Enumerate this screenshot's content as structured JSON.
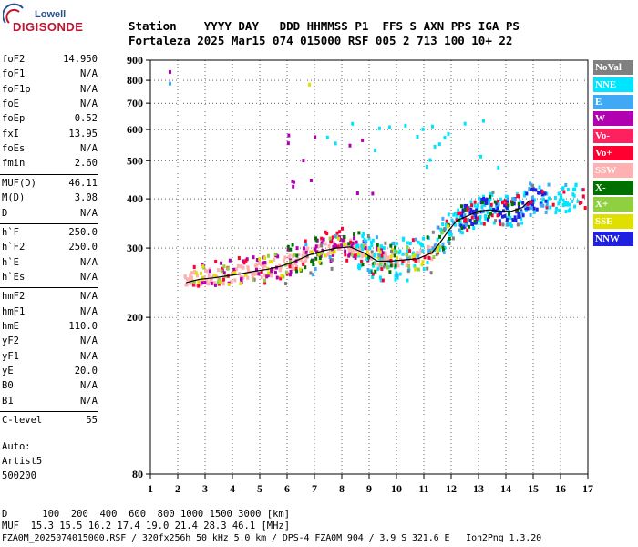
{
  "logo": {
    "top": "Lowell",
    "bottom": "DIGISONDE"
  },
  "header": {
    "line1": "Station    YYYY DAY   DDD HHMMSS P1  FFS S AXN PPS IGA PS",
    "line2": "Fortaleza 2025 Mar15 074 015000 RSF 005 2 713 100 10+ 22"
  },
  "params": [
    {
      "name": "foF2",
      "value": "14.950"
    },
    {
      "name": "foF1",
      "value": "N/A"
    },
    {
      "name": "foF1p",
      "value": "N/A"
    },
    {
      "name": "foE",
      "value": "N/A"
    },
    {
      "name": "foEp",
      "value": "0.52"
    },
    {
      "name": "fxI",
      "value": "13.95"
    },
    {
      "name": "foEs",
      "value": "N/A"
    },
    {
      "name": "fmin",
      "value": "2.60"
    },
    {
      "name": "MUF(D)",
      "value": "46.11"
    },
    {
      "name": "M(D)",
      "value": "3.08"
    },
    {
      "name": "D",
      "value": "N/A"
    },
    {
      "name": "h`F",
      "value": "250.0"
    },
    {
      "name": "h`F2",
      "value": "250.0"
    },
    {
      "name": "h`E",
      "value": "N/A"
    },
    {
      "name": "h`Es",
      "value": "N/A"
    },
    {
      "name": "hmF2",
      "value": "N/A"
    },
    {
      "name": "hmF1",
      "value": "N/A"
    },
    {
      "name": "hmE",
      "value": "110.0"
    },
    {
      "name": "yF2",
      "value": "N/A"
    },
    {
      "name": "yF1",
      "value": "N/A"
    },
    {
      "name": "yE",
      "value": "20.0"
    },
    {
      "name": "B0",
      "value": "N/A"
    },
    {
      "name": "B1",
      "value": "N/A"
    },
    {
      "name": "C-level",
      "value": "55"
    }
  ],
  "auto": {
    "line1": "Auto:",
    "line2": "Artist5",
    "line3": "500200"
  },
  "legend": [
    {
      "label": "NoVal",
      "color": "#808080"
    },
    {
      "label": "NNE",
      "color": "#00e5ff"
    },
    {
      "label": "E",
      "color": "#3fa9f5"
    },
    {
      "label": "W",
      "color": "#b000b0"
    },
    {
      "label": "Vo-",
      "color": "#ff2060"
    },
    {
      "label": "Vo+",
      "color": "#ff0030"
    },
    {
      "label": "SSW",
      "color": "#ffb0b0"
    },
    {
      "label": "X-",
      "color": "#007000"
    },
    {
      "label": "X+",
      "color": "#90d040"
    },
    {
      "label": "SSE",
      "color": "#e0e000"
    },
    {
      "label": "NNW",
      "color": "#2020e0"
    }
  ],
  "footer": {
    "line1": "D      100  200  400  600  800 1000 1500 3000 [km]",
    "line2": "MUF  15.3 15.5 16.2 17.4 19.0 21.4 28.3 46.1 [MHz]",
    "line3": "FZA0M_2025074015000.RSF / 320fx256h 50 kHz 5.0 km / DPS-4 FZA0M 904 / 3.9 S 321.6 E   Ion2Png 1.3.20"
  },
  "chart_data": {
    "type": "scatter",
    "title": "",
    "xlabel": "",
    "ylabel": "",
    "xlim": [
      1,
      17
    ],
    "ylim": [
      80,
      900
    ],
    "y_scale": "log",
    "x_ticks": [
      1,
      2,
      3,
      4,
      5,
      6,
      7,
      8,
      9,
      10,
      11,
      12,
      13,
      14,
      15,
      16,
      17
    ],
    "y_ticks": [
      80,
      200,
      300,
      400,
      500,
      600,
      700,
      800,
      900
    ],
    "trace": {
      "name": "",
      "x": [
        2.3,
        2.8,
        3.3,
        3.8,
        4.3,
        4.8,
        5.3,
        5.8,
        6.3,
        6.8,
        7.3,
        7.8,
        8.3,
        8.8,
        9.3,
        9.8,
        10.3,
        10.8,
        11.3,
        11.6,
        11.9,
        12.2,
        12.6,
        13.0,
        13.4,
        13.8,
        14.2,
        14.6,
        14.9
      ],
      "y": [
        245,
        250,
        252,
        255,
        258,
        262,
        265,
        270,
        278,
        288,
        295,
        300,
        302,
        292,
        278,
        278,
        280,
        282,
        292,
        310,
        332,
        352,
        362,
        372,
        375,
        372,
        372,
        380,
        398
      ]
    },
    "clusters": [
      {
        "name": "SSW",
        "color": "#ffb0b0",
        "x0": 2.2,
        "x1": 11.5,
        "y0": 255,
        "y1": 300,
        "n": 260
      },
      {
        "name": "W",
        "color": "#b000b0",
        "x0": 2.8,
        "x1": 9.5,
        "y0": 260,
        "y1": 340,
        "n": 90
      },
      {
        "name": "NNE",
        "color": "#00e5ff",
        "x0": 8.5,
        "x1": 16.8,
        "y0": 290,
        "y1": 420,
        "n": 220
      },
      {
        "name": "NNW",
        "color": "#2020e0",
        "x0": 12.3,
        "x1": 15.5,
        "y0": 300,
        "y1": 390,
        "n": 90
      },
      {
        "name": "Vo+",
        "color": "#ff0030",
        "x0": 2.5,
        "x1": 16.9,
        "y0": 260,
        "y1": 380,
        "n": 90
      },
      {
        "name": "X-",
        "color": "#007000",
        "x0": 6.0,
        "x1": 14.5,
        "y0": 270,
        "y1": 380,
        "n": 60
      },
      {
        "name": "X+",
        "color": "#90d040",
        "x0": 2.5,
        "x1": 12.0,
        "y0": 255,
        "y1": 330,
        "n": 40
      },
      {
        "name": "SSE",
        "color": "#e0e000",
        "x0": 2.5,
        "x1": 12.0,
        "y0": 260,
        "y1": 330,
        "n": 50
      },
      {
        "name": "E",
        "color": "#3fa9f5",
        "x0": 6.5,
        "x1": 16.8,
        "y0": 280,
        "y1": 420,
        "n": 50
      },
      {
        "name": "NoVal",
        "color": "#808080",
        "x0": 5.0,
        "x1": 15.0,
        "y0": 260,
        "y1": 400,
        "n": 25
      },
      {
        "name": "NNE-high",
        "color": "#00e5ff",
        "x0": 6.8,
        "x1": 14.0,
        "y0": 480,
        "y1": 650,
        "n": 20
      },
      {
        "name": "W-high",
        "color": "#b000b0",
        "x0": 5.5,
        "x1": 11.5,
        "y0": 390,
        "y1": 600,
        "n": 12
      }
    ],
    "outliers": [
      {
        "x": 1.7,
        "y": 840,
        "color": "#b000b0"
      },
      {
        "x": 1.7,
        "y": 785,
        "color": "#3fa9f5"
      },
      {
        "x": 6.8,
        "y": 780,
        "color": "#e0e000"
      }
    ]
  }
}
